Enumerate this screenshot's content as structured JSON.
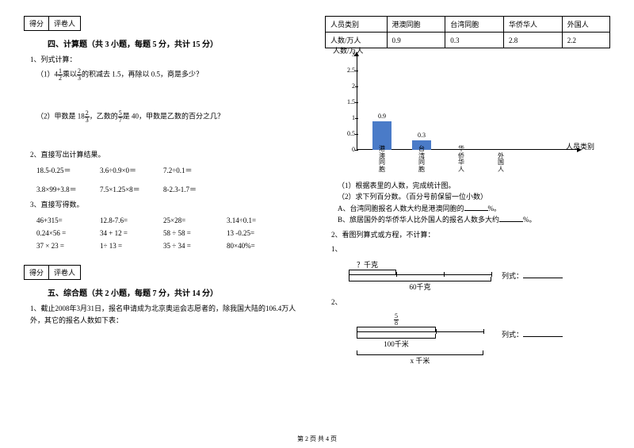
{
  "score_box": {
    "c1": "得分",
    "c2": "评卷人"
  },
  "section4": {
    "title": "四、计算题（共 3 小题，每题 5 分，共计 15 分）",
    "q1": "1、列式计算：",
    "q1a_pre": "（1）4",
    "q1a_frac1_n": "1",
    "q1a_frac1_d": "2",
    "q1a_mid": "乘以",
    "q1a_frac2_n": "2",
    "q1a_frac2_d": "3",
    "q1a_post": "的积减去 1.5，再除以 0.5，商是多少？",
    "q1b_pre": "（2）甲数是 18",
    "q1b_frac1_n": "2",
    "q1b_frac1_d": "3",
    "q1b_mid": "，乙数的",
    "q1b_frac2_n": "5",
    "q1b_frac2_d": "7",
    "q1b_post": "是 40，甲数是乙数的百分之几？",
    "q2": "2、直接写出计算结果。",
    "q2_items": [
      "18.5-0.25＝",
      "3.6÷0.9×0＝",
      "7.2÷0.1＝",
      "3.8×99+3.8＝",
      "7.5×1.25×8＝",
      "8-2.3-1.7＝"
    ],
    "q3": "3、直接写得数。",
    "q3_items": [
      "46+315=",
      "12.8-7.6=",
      "25×28=",
      "3.14÷0.1=",
      "0.24×56 =",
      "34 + 12 =",
      "58 ÷ 58 =",
      "13 -0.25=",
      "37 × 23 =",
      "1÷ 13 =",
      "35 ÷ 34 =",
      "80×40%="
    ]
  },
  "section5": {
    "title": "五、综合题（共 2 小题，每题 7 分，共计 14 分）",
    "q1": "1、截止2008年3月31日，报名申请成为北京奥运会志愿者的，除我国大陆的106.4万人外，其它的报名人数如下表："
  },
  "table": {
    "h1": "人员类别",
    "h2": "港澳同胞",
    "h3": "台湾同胞",
    "h4": "华侨华人",
    "h5": "外国人",
    "r1": "人数/万人",
    "v1": "0.9",
    "v2": "0.3",
    "v3": "2.8",
    "v4": "2.2"
  },
  "chart": {
    "y_label": "人数/万人",
    "x_label": "人员类别",
    "y_ticks": [
      "0",
      "0.5",
      "1",
      "1.5",
      "2",
      "2.5",
      "3"
    ],
    "bars": [
      {
        "label": "0.9",
        "value": 0.9,
        "height": 36,
        "cat": "港澳同胞",
        "filled": true
      },
      {
        "label": "0.3",
        "value": 0.3,
        "height": 12,
        "cat": "台湾同胞",
        "filled": true
      },
      {
        "label": "",
        "value": 0,
        "height": 0,
        "cat": "华侨华人",
        "filled": false
      },
      {
        "label": "",
        "value": 0,
        "height": 0,
        "cat": "外国人",
        "filled": false
      }
    ],
    "bar_color": "#4a7bc8"
  },
  "answers": {
    "a1": "（1）根据表里的人数，完成统计图。",
    "a2": "（2）求下列百分数。（百分号前保留一位小数）",
    "a2a_pre": "A、台湾同胞报名人数大约是港澳同胞的",
    "a2a_post": "%。",
    "a2b_pre": "B、旅居国外的华侨华人比外国人的报名人数多大约",
    "a2b_post": "%。"
  },
  "q2": {
    "title": "2、看图列算式或方程，不计算：",
    "p1": "1、",
    "p1_top": "？千克",
    "p1_bottom": "60千克",
    "p1_formula": "列式：",
    "p2": "2、",
    "p2_frac_n": "5",
    "p2_frac_d": "8",
    "p2_bottom1": "100千米",
    "p2_bottom2": "x 千米",
    "p2_formula": "列式："
  },
  "footer": "第 2 页 共 4 页"
}
